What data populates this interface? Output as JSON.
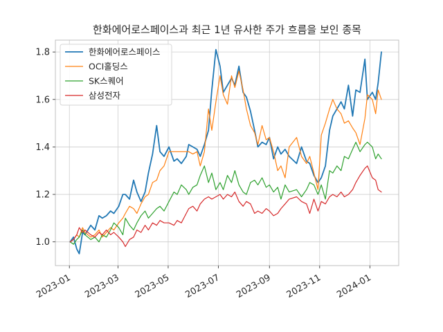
{
  "chart_data": {
    "type": "line",
    "title": "한화에어로스페이스과 최근 1년 유사한 주가 흐름을 보인 종목",
    "xlabel": "",
    "ylabel": "",
    "x_domain": [
      "2022-12-15",
      "2024-02-05"
    ],
    "ylim": [
      0.9,
      1.85
    ],
    "x_ticks": [
      {
        "date": "2023-01-01",
        "label": "2023-01"
      },
      {
        "date": "2023-03-01",
        "label": "2023-03"
      },
      {
        "date": "2023-05-01",
        "label": "2023-05"
      },
      {
        "date": "2023-07-01",
        "label": "2023-07"
      },
      {
        "date": "2023-09-01",
        "label": "2023-09"
      },
      {
        "date": "2023-11-01",
        "label": "2023-11"
      },
      {
        "date": "2024-01-01",
        "label": "2024-01"
      }
    ],
    "y_ticks": [
      {
        "value": 1.0,
        "label": "1.0"
      },
      {
        "value": 1.2,
        "label": "1.2"
      },
      {
        "value": 1.4,
        "label": "1.4"
      },
      {
        "value": 1.6,
        "label": "1.6"
      },
      {
        "value": 1.8,
        "label": "1.8"
      }
    ],
    "grid": true,
    "legend_position": "top-left",
    "series": [
      {
        "name": "한화에어로스페이스",
        "color": "#1f77b4",
        "width": 1.8,
        "x": [
          "2023-01-02",
          "2023-01-06",
          "2023-01-10",
          "2023-01-13",
          "2023-01-17",
          "2023-01-20",
          "2023-01-27",
          "2023-02-01",
          "2023-02-06",
          "2023-02-10",
          "2023-02-15",
          "2023-02-20",
          "2023-02-24",
          "2023-03-02",
          "2023-03-07",
          "2023-03-10",
          "2023-03-15",
          "2023-03-20",
          "2023-03-24",
          "2023-03-29",
          "2023-04-03",
          "2023-04-07",
          "2023-04-12",
          "2023-04-17",
          "2023-04-21",
          "2023-04-26",
          "2023-05-02",
          "2023-05-08",
          "2023-05-12",
          "2023-05-17",
          "2023-05-23",
          "2023-05-26",
          "2023-05-31",
          "2023-06-05",
          "2023-06-09",
          "2023-06-14",
          "2023-06-19",
          "2023-06-23",
          "2023-06-28",
          "2023-07-03",
          "2023-07-07",
          "2023-07-12",
          "2023-07-17",
          "2023-07-21",
          "2023-07-26",
          "2023-07-31",
          "2023-08-04",
          "2023-08-09",
          "2023-08-14",
          "2023-08-18",
          "2023-08-23",
          "2023-08-28",
          "2023-09-01",
          "2023-09-06",
          "2023-09-11",
          "2023-09-15",
          "2023-09-20",
          "2023-09-25",
          "2023-10-04",
          "2023-10-10",
          "2023-10-16",
          "2023-10-20",
          "2023-10-25",
          "2023-10-30",
          "2023-11-03",
          "2023-11-08",
          "2023-11-13",
          "2023-11-17",
          "2023-11-22",
          "2023-11-27",
          "2023-12-01",
          "2023-12-06",
          "2023-12-11",
          "2023-12-15",
          "2023-12-20",
          "2023-12-26",
          "2023-12-29",
          "2024-01-04",
          "2024-01-08",
          "2024-01-11",
          "2024-01-15"
        ],
        "values": [
          1.0,
          1.02,
          0.97,
          0.95,
          1.04,
          1.03,
          1.07,
          1.05,
          1.11,
          1.1,
          1.11,
          1.13,
          1.12,
          1.15,
          1.2,
          1.2,
          1.18,
          1.26,
          1.21,
          1.17,
          1.21,
          1.29,
          1.37,
          1.49,
          1.38,
          1.36,
          1.4,
          1.34,
          1.35,
          1.33,
          1.36,
          1.41,
          1.4,
          1.39,
          1.36,
          1.41,
          1.47,
          1.64,
          1.81,
          1.74,
          1.63,
          1.66,
          1.69,
          1.66,
          1.74,
          1.63,
          1.61,
          1.55,
          1.47,
          1.4,
          1.42,
          1.41,
          1.44,
          1.35,
          1.4,
          1.37,
          1.39,
          1.36,
          1.33,
          1.4,
          1.34,
          1.33,
          1.28,
          1.25,
          1.27,
          1.32,
          1.47,
          1.53,
          1.56,
          1.59,
          1.56,
          1.66,
          1.53,
          1.64,
          1.63,
          1.77,
          1.6,
          1.63,
          1.6,
          1.67,
          1.8
        ]
      },
      {
        "name": "OCI홀딩스",
        "color": "#ff7f0e",
        "width": 1.2,
        "x": [
          "2023-01-02",
          "2023-01-06",
          "2023-01-10",
          "2023-01-13",
          "2023-01-17",
          "2023-01-20",
          "2023-01-27",
          "2023-02-01",
          "2023-02-06",
          "2023-02-10",
          "2023-02-15",
          "2023-02-20",
          "2023-02-24",
          "2023-03-02",
          "2023-03-07",
          "2023-03-10",
          "2023-03-15",
          "2023-03-20",
          "2023-03-24",
          "2023-03-29",
          "2023-04-03",
          "2023-04-07",
          "2023-04-12",
          "2023-04-17",
          "2023-04-21",
          "2023-04-26",
          "2023-05-02",
          "2023-05-08",
          "2023-05-12",
          "2023-05-17",
          "2023-05-23",
          "2023-05-26",
          "2023-05-31",
          "2023-06-05",
          "2023-06-09",
          "2023-06-14",
          "2023-06-19",
          "2023-06-23",
          "2023-06-28",
          "2023-07-03",
          "2023-07-07",
          "2023-07-12",
          "2023-07-17",
          "2023-07-21",
          "2023-07-26",
          "2023-07-31",
          "2023-08-04",
          "2023-08-09",
          "2023-08-14",
          "2023-08-18",
          "2023-08-23",
          "2023-08-28",
          "2023-09-01",
          "2023-09-06",
          "2023-09-11",
          "2023-09-15",
          "2023-09-20",
          "2023-09-25",
          "2023-10-04",
          "2023-10-10",
          "2023-10-16",
          "2023-10-20",
          "2023-10-25",
          "2023-10-30",
          "2023-11-03",
          "2023-11-08",
          "2023-11-13",
          "2023-11-17",
          "2023-11-22",
          "2023-11-27",
          "2023-12-01",
          "2023-12-06",
          "2023-12-11",
          "2023-12-15",
          "2023-12-20",
          "2023-12-26",
          "2023-12-29",
          "2024-01-04",
          "2024-01-08",
          "2024-01-11",
          "2024-01-15"
        ],
        "values": [
          1.0,
          1.01,
          1.03,
          1.02,
          1.06,
          1.04,
          1.02,
          1.03,
          1.05,
          1.02,
          1.04,
          1.06,
          1.05,
          1.08,
          1.1,
          1.12,
          1.15,
          1.14,
          1.12,
          1.16,
          1.19,
          1.2,
          1.25,
          1.26,
          1.3,
          1.32,
          1.38,
          1.38,
          1.38,
          1.38,
          1.38,
          1.38,
          1.37,
          1.38,
          1.32,
          1.38,
          1.56,
          1.47,
          1.59,
          1.7,
          1.62,
          1.58,
          1.7,
          1.65,
          1.72,
          1.64,
          1.56,
          1.49,
          1.46,
          1.41,
          1.49,
          1.43,
          1.44,
          1.38,
          1.3,
          1.32,
          1.27,
          1.4,
          1.44,
          1.36,
          1.33,
          1.36,
          1.29,
          1.22,
          1.45,
          1.5,
          1.56,
          1.6,
          1.56,
          1.54,
          1.5,
          1.51,
          1.48,
          1.46,
          1.41,
          1.52,
          1.62,
          1.6,
          1.54,
          1.64,
          1.6
        ]
      },
      {
        "name": "SK스퀘어",
        "color": "#2ca02c",
        "width": 1.2,
        "x": [
          "2023-01-02",
          "2023-01-06",
          "2023-01-10",
          "2023-01-13",
          "2023-01-17",
          "2023-01-20",
          "2023-01-27",
          "2023-02-01",
          "2023-02-06",
          "2023-02-10",
          "2023-02-15",
          "2023-02-20",
          "2023-02-24",
          "2023-03-02",
          "2023-03-07",
          "2023-03-10",
          "2023-03-15",
          "2023-03-20",
          "2023-03-24",
          "2023-03-29",
          "2023-04-03",
          "2023-04-07",
          "2023-04-12",
          "2023-04-17",
          "2023-04-21",
          "2023-04-26",
          "2023-05-02",
          "2023-05-08",
          "2023-05-12",
          "2023-05-17",
          "2023-05-23",
          "2023-05-26",
          "2023-05-31",
          "2023-06-05",
          "2023-06-09",
          "2023-06-14",
          "2023-06-19",
          "2023-06-23",
          "2023-06-28",
          "2023-07-03",
          "2023-07-07",
          "2023-07-12",
          "2023-07-17",
          "2023-07-21",
          "2023-07-26",
          "2023-07-31",
          "2023-08-04",
          "2023-08-09",
          "2023-08-14",
          "2023-08-18",
          "2023-08-23",
          "2023-08-28",
          "2023-09-01",
          "2023-09-06",
          "2023-09-11",
          "2023-09-15",
          "2023-09-20",
          "2023-09-25",
          "2023-10-04",
          "2023-10-10",
          "2023-10-16",
          "2023-10-20",
          "2023-10-25",
          "2023-10-30",
          "2023-11-03",
          "2023-11-08",
          "2023-11-13",
          "2023-11-17",
          "2023-11-22",
          "2023-11-27",
          "2023-12-01",
          "2023-12-06",
          "2023-12-11",
          "2023-12-15",
          "2023-12-20",
          "2023-12-26",
          "2023-12-29",
          "2024-01-04",
          "2024-01-08",
          "2024-01-11",
          "2024-01-15"
        ],
        "values": [
          1.0,
          0.99,
          1.01,
          1.02,
          1.05,
          1.03,
          1.01,
          1.02,
          1.0,
          1.03,
          1.02,
          1.05,
          1.08,
          1.06,
          1.03,
          1.1,
          1.07,
          1.05,
          1.08,
          1.11,
          1.13,
          1.1,
          1.12,
          1.14,
          1.15,
          1.13,
          1.17,
          1.21,
          1.2,
          1.24,
          1.22,
          1.2,
          1.23,
          1.24,
          1.28,
          1.32,
          1.25,
          1.29,
          1.22,
          1.25,
          1.22,
          1.28,
          1.25,
          1.3,
          1.24,
          1.21,
          1.2,
          1.25,
          1.26,
          1.24,
          1.27,
          1.23,
          1.24,
          1.21,
          1.23,
          1.18,
          1.24,
          1.21,
          1.22,
          1.19,
          1.22,
          1.25,
          1.24,
          1.2,
          1.24,
          1.18,
          1.3,
          1.29,
          1.32,
          1.3,
          1.36,
          1.35,
          1.39,
          1.42,
          1.38,
          1.41,
          1.42,
          1.4,
          1.35,
          1.37,
          1.35
        ]
      },
      {
        "name": "삼성전자",
        "color": "#d62728",
        "width": 1.2,
        "x": [
          "2023-01-02",
          "2023-01-06",
          "2023-01-10",
          "2023-01-13",
          "2023-01-17",
          "2023-01-20",
          "2023-01-27",
          "2023-02-01",
          "2023-02-06",
          "2023-02-10",
          "2023-02-15",
          "2023-02-20",
          "2023-02-24",
          "2023-03-02",
          "2023-03-07",
          "2023-03-10",
          "2023-03-15",
          "2023-03-20",
          "2023-03-24",
          "2023-03-29",
          "2023-04-03",
          "2023-04-07",
          "2023-04-12",
          "2023-04-17",
          "2023-04-21",
          "2023-04-26",
          "2023-05-02",
          "2023-05-08",
          "2023-05-12",
          "2023-05-17",
          "2023-05-23",
          "2023-05-26",
          "2023-05-31",
          "2023-06-05",
          "2023-06-09",
          "2023-06-14",
          "2023-06-19",
          "2023-06-23",
          "2023-06-28",
          "2023-07-03",
          "2023-07-07",
          "2023-07-12",
          "2023-07-17",
          "2023-07-21",
          "2023-07-26",
          "2023-07-31",
          "2023-08-04",
          "2023-08-09",
          "2023-08-14",
          "2023-08-18",
          "2023-08-23",
          "2023-08-28",
          "2023-09-01",
          "2023-09-06",
          "2023-09-11",
          "2023-09-15",
          "2023-09-20",
          "2023-09-25",
          "2023-10-04",
          "2023-10-10",
          "2023-10-16",
          "2023-10-20",
          "2023-10-25",
          "2023-10-30",
          "2023-11-03",
          "2023-11-08",
          "2023-11-13",
          "2023-11-17",
          "2023-11-22",
          "2023-11-27",
          "2023-12-01",
          "2023-12-06",
          "2023-12-11",
          "2023-12-15",
          "2023-12-20",
          "2023-12-26",
          "2023-12-29",
          "2024-01-04",
          "2024-01-08",
          "2024-01-11",
          "2024-01-15"
        ],
        "values": [
          1.0,
          1.01,
          1.03,
          1.06,
          1.04,
          1.05,
          1.03,
          1.02,
          1.04,
          1.03,
          1.05,
          1.03,
          1.04,
          1.02,
          1.0,
          0.98,
          1.01,
          1.02,
          1.05,
          1.04,
          1.07,
          1.05,
          1.08,
          1.07,
          1.09,
          1.08,
          1.08,
          1.07,
          1.09,
          1.08,
          1.12,
          1.14,
          1.15,
          1.13,
          1.16,
          1.18,
          1.19,
          1.18,
          1.19,
          1.2,
          1.18,
          1.2,
          1.19,
          1.21,
          1.17,
          1.15,
          1.17,
          1.16,
          1.12,
          1.13,
          1.12,
          1.14,
          1.13,
          1.11,
          1.12,
          1.14,
          1.16,
          1.18,
          1.19,
          1.17,
          1.16,
          1.12,
          1.18,
          1.13,
          1.17,
          1.16,
          1.19,
          1.2,
          1.19,
          1.21,
          1.19,
          1.2,
          1.22,
          1.25,
          1.28,
          1.31,
          1.32,
          1.27,
          1.26,
          1.22,
          1.21
        ]
      }
    ]
  }
}
